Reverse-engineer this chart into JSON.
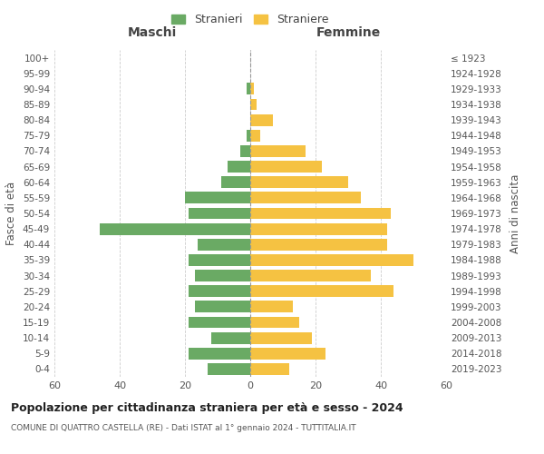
{
  "age_groups": [
    "0-4",
    "5-9",
    "10-14",
    "15-19",
    "20-24",
    "25-29",
    "30-34",
    "35-39",
    "40-44",
    "45-49",
    "50-54",
    "55-59",
    "60-64",
    "65-69",
    "70-74",
    "75-79",
    "80-84",
    "85-89",
    "90-94",
    "95-99",
    "100+"
  ],
  "birth_years": [
    "2019-2023",
    "2014-2018",
    "2009-2013",
    "2004-2008",
    "1999-2003",
    "1994-1998",
    "1989-1993",
    "1984-1988",
    "1979-1983",
    "1974-1978",
    "1969-1973",
    "1964-1968",
    "1959-1963",
    "1954-1958",
    "1949-1953",
    "1944-1948",
    "1939-1943",
    "1934-1938",
    "1929-1933",
    "1924-1928",
    "≤ 1923"
  ],
  "males": [
    13,
    19,
    12,
    19,
    17,
    19,
    17,
    19,
    16,
    46,
    19,
    20,
    9,
    7,
    3,
    1,
    0,
    0,
    1,
    0,
    0
  ],
  "females": [
    12,
    23,
    19,
    15,
    13,
    44,
    37,
    50,
    42,
    42,
    43,
    34,
    30,
    22,
    17,
    3,
    7,
    2,
    1,
    0,
    0
  ],
  "male_color": "#6aaa64",
  "female_color": "#f5c242",
  "background_color": "#ffffff",
  "grid_color": "#cccccc",
  "title": "Popolazione per cittadinanza straniera per età e sesso - 2024",
  "subtitle": "COMUNE DI QUATTRO CASTELLA (RE) - Dati ISTAT al 1° gennaio 2024 - TUTTITALIA.IT",
  "xlabel_left": "Maschi",
  "xlabel_right": "Femmine",
  "ylabel_left": "Fasce di età",
  "ylabel_right": "Anni di nascita",
  "legend_stranieri": "Stranieri",
  "legend_straniere": "Straniere",
  "xlim": 60
}
